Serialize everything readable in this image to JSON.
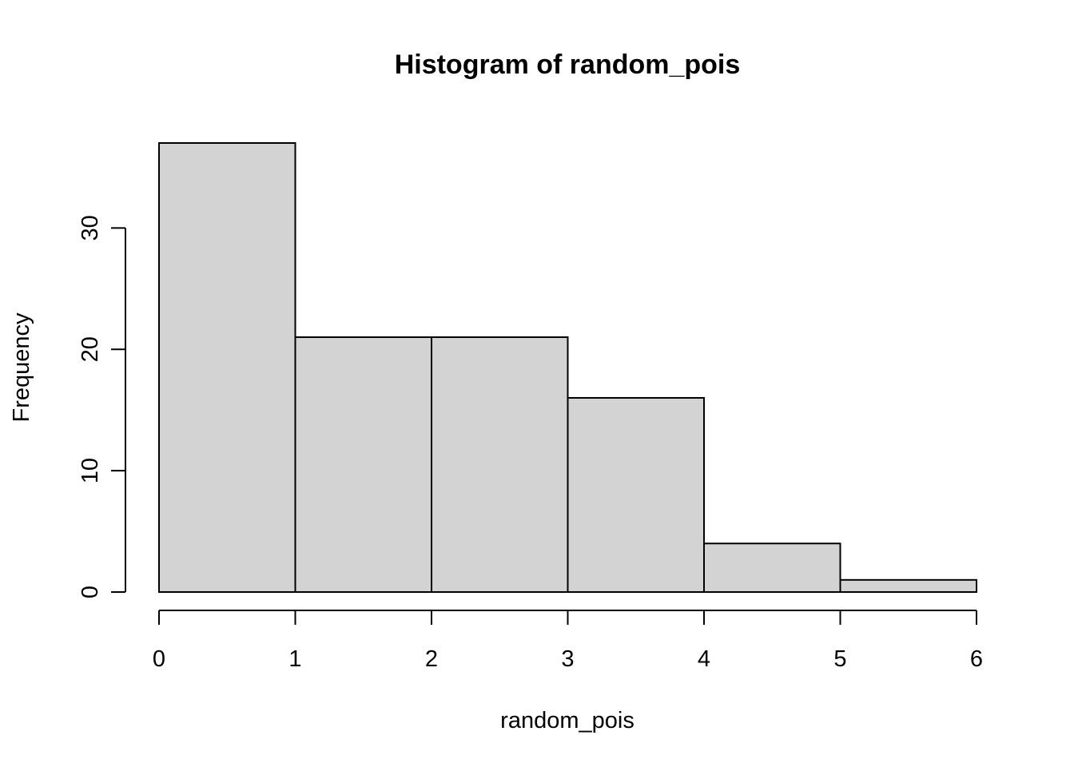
{
  "chart_data": {
    "type": "bar",
    "title": "Histogram of random_pois",
    "xlabel": "random_pois",
    "ylabel": "Frequency",
    "bins": [
      {
        "from": 0,
        "to": 1,
        "count": 37
      },
      {
        "from": 1,
        "to": 2,
        "count": 21
      },
      {
        "from": 2,
        "to": 3,
        "count": 21
      },
      {
        "from": 3,
        "to": 4,
        "count": 16
      },
      {
        "from": 4,
        "to": 5,
        "count": 4
      },
      {
        "from": 5,
        "to": 6,
        "count": 1
      }
    ],
    "xlim": [
      0,
      6
    ],
    "ylim": [
      0,
      37
    ],
    "x_ticks": [
      0,
      1,
      2,
      3,
      4,
      5,
      6
    ],
    "y_ticks": [
      0,
      10,
      20,
      30
    ],
    "grid": false,
    "legend": "none",
    "bar_fill": "#d3d3d3",
    "bar_stroke": "#000000"
  }
}
